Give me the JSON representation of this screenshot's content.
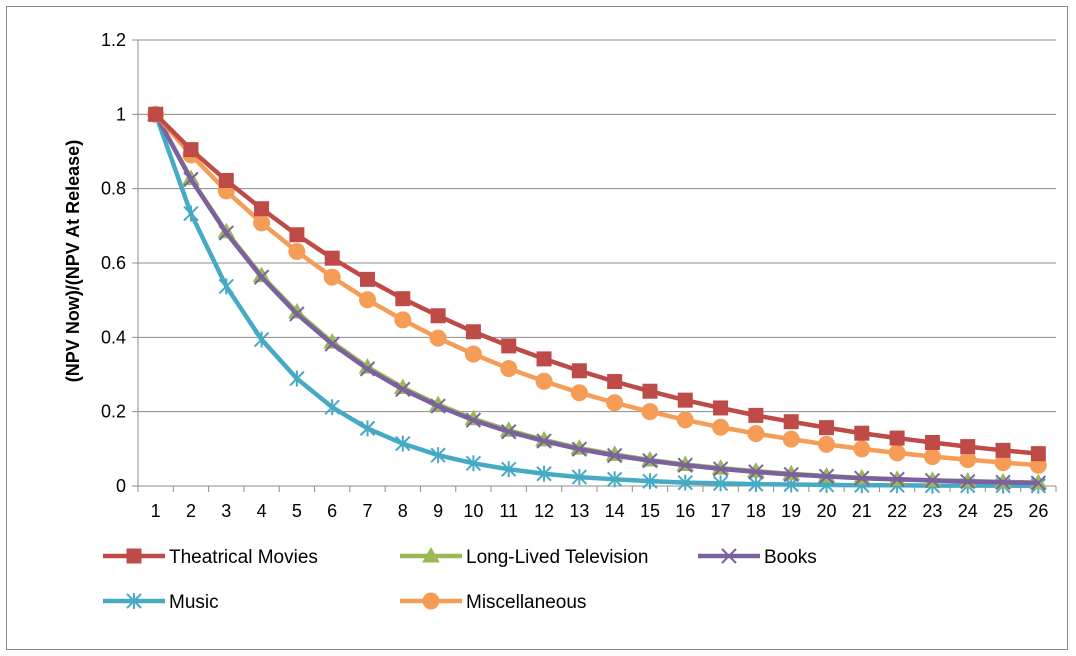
{
  "chart_data": {
    "type": "line",
    "title": "",
    "xlabel": "",
    "ylabel": "(NPV Now)/(NPV At Release)",
    "categories": [
      "1",
      "2",
      "3",
      "4",
      "5",
      "6",
      "7",
      "8",
      "9",
      "10",
      "11",
      "12",
      "13",
      "14",
      "15",
      "16",
      "17",
      "18",
      "19",
      "20",
      "21",
      "22",
      "23",
      "24",
      "25",
      "26"
    ],
    "ylim": [
      0,
      1.2
    ],
    "yticks": [
      "0",
      "0.2",
      "0.4",
      "0.6",
      "0.8",
      "1",
      "1.2"
    ],
    "grid": "horizontal",
    "legend_position": "bottom",
    "series": [
      {
        "name": "Theatrical Movies",
        "color": "#be4b48",
        "marker": "square",
        "values": [
          1,
          0.905,
          0.822,
          0.746,
          0.676,
          0.613,
          0.556,
          0.504,
          0.458,
          0.415,
          0.377,
          0.342,
          0.31,
          0.281,
          0.255,
          0.231,
          0.21,
          0.19,
          0.173,
          0.157,
          0.142,
          0.129,
          0.117,
          0.106,
          0.096,
          0.087
        ]
      },
      {
        "name": "Long-Lived Television",
        "color": "#98b954",
        "marker": "triangle",
        "values": [
          1,
          0.827,
          0.684,
          0.566,
          0.468,
          0.387,
          0.32,
          0.265,
          0.219,
          0.181,
          0.15,
          0.124,
          0.102,
          0.085,
          0.07,
          0.058,
          0.048,
          0.04,
          0.033,
          0.027,
          0.022,
          0.018,
          0.015,
          0.013,
          0.011,
          0.009
        ]
      },
      {
        "name": "Books",
        "color": "#7d60a0",
        "marker": "x",
        "values": [
          1,
          0.825,
          0.681,
          0.562,
          0.463,
          0.382,
          0.315,
          0.26,
          0.215,
          0.177,
          0.146,
          0.121,
          0.099,
          0.082,
          0.068,
          0.056,
          0.046,
          0.038,
          0.031,
          0.026,
          0.021,
          0.018,
          0.015,
          0.012,
          0.01,
          0.008
        ]
      },
      {
        "name": "Music",
        "color": "#46aac5",
        "marker": "star",
        "values": [
          1,
          0.733,
          0.537,
          0.394,
          0.289,
          0.212,
          0.155,
          0.114,
          0.083,
          0.061,
          0.045,
          0.033,
          0.024,
          0.018,
          0.013,
          0.009,
          0.007,
          0.005,
          0.004,
          0.003,
          0.002,
          0.002,
          0.001,
          0.001,
          0.001,
          0.0005
        ]
      },
      {
        "name": "Miscellaneous",
        "color": "#f59d56",
        "marker": "circle",
        "values": [
          1,
          0.891,
          0.794,
          0.708,
          0.631,
          0.562,
          0.501,
          0.447,
          0.398,
          0.355,
          0.316,
          0.282,
          0.251,
          0.224,
          0.2,
          0.178,
          0.158,
          0.141,
          0.126,
          0.112,
          0.1,
          0.089,
          0.079,
          0.071,
          0.063,
          0.056
        ]
      }
    ]
  }
}
